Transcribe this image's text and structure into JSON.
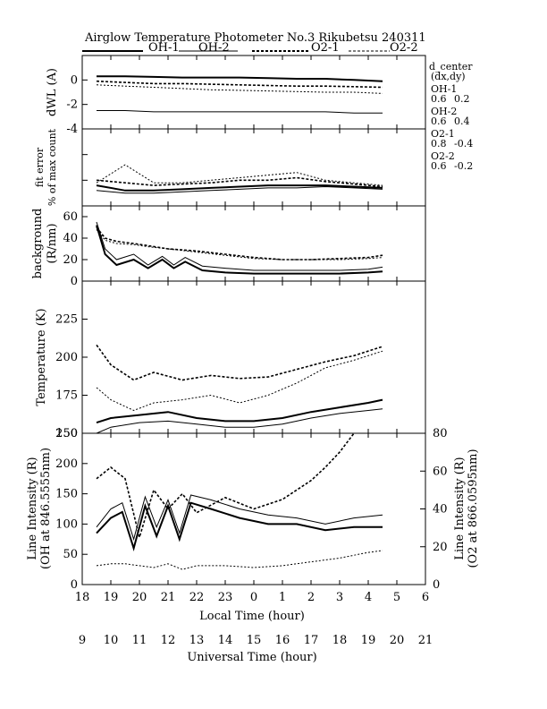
{
  "header": {
    "title": "Airglow Temperature Photometer No.3  Rikubetsu    240311"
  },
  "legend": [
    {
      "label": "OH-1",
      "style": "solid-thick"
    },
    {
      "label": "OH-2",
      "style": "solid-thin"
    },
    {
      "label": "O2-1",
      "style": "dashed-thick"
    },
    {
      "label": "O2-2",
      "style": "dashed-thin"
    }
  ],
  "side_info": {
    "heading1": "d_center",
    "heading2": "(dx,dy)",
    "entries": [
      {
        "name": "OH-1",
        "dx": "0.6",
        "dy": "0.2"
      },
      {
        "name": "OH-2",
        "dx": "0.6",
        "dy": "0.4"
      },
      {
        "name": "O2-1",
        "dx": "0.8",
        "dy": "-0.4"
      },
      {
        "name": "O2-2",
        "dx": "0.6",
        "dy": "-0.2"
      }
    ]
  },
  "axes": {
    "local_time_label": "Local Time (hour)",
    "universal_time_label": "Universal Time (hour)",
    "local_ticks": [
      "18",
      "19",
      "20",
      "21",
      "22",
      "23",
      "0",
      "1",
      "2",
      "3",
      "4",
      "5",
      "6"
    ],
    "ut_ticks": [
      "9",
      "10",
      "11",
      "12",
      "13",
      "14",
      "15",
      "16",
      "17",
      "18",
      "19",
      "20",
      "21"
    ]
  },
  "panels": {
    "dwl": {
      "ylabel": "dWL (A)",
      "ticks": [
        "0",
        "-2",
        "-4"
      ]
    },
    "fit": {
      "ylabel1": "fit error",
      "ylabel2": "% of max count"
    },
    "bg": {
      "ylabel1": "background",
      "ylabel2": "(R/nm)",
      "ticks": [
        "60",
        "40",
        "20",
        "0"
      ]
    },
    "temp": {
      "ylabel": "Temperature (K)",
      "ticks": [
        "225",
        "200",
        "175",
        "150"
      ]
    },
    "int": {
      "ylabel1": "Line Intensity (R)",
      "ylabel2": "(OH at 846.5555nm)",
      "rlabel1": "Line Intensity (R)",
      "rlabel2": "(O2 at 866.0595nm)",
      "left_ticks": [
        "250",
        "200",
        "150",
        "100",
        "50",
        "0"
      ],
      "right_ticks": [
        "80",
        "60",
        "40",
        "20",
        "0"
      ]
    }
  },
  "chart_data": {
    "type": "line",
    "title": "Airglow Temperature Photometer No.3  Rikubetsu    240311",
    "x_unit": "Local Time (hour)",
    "xlim": [
      18,
      30
    ],
    "panels": [
      {
        "name": "dWL",
        "ylabel": "dWL (A)",
        "ylim": [
          -4,
          2
        ],
        "series": [
          {
            "name": "OH-1",
            "x": [
              18.5,
              19.5,
              20.5,
              21.5,
              22.5,
              23.5,
              24.5,
              25.5,
              26.5,
              27.5,
              28.5
            ],
            "y": [
              0.3,
              0.3,
              0.25,
              0.2,
              0.2,
              0.2,
              0.15,
              0.1,
              0.1,
              0.0,
              -0.1
            ]
          },
          {
            "name": "OH-2",
            "x": [
              18.5,
              19.5,
              20.5,
              21.5,
              22.5,
              23.5,
              24.5,
              25.5,
              26.5,
              27.5,
              28.5
            ],
            "y": [
              -2.5,
              -2.5,
              -2.6,
              -2.6,
              -2.6,
              -2.6,
              -2.6,
              -2.6,
              -2.6,
              -2.7,
              -2.7
            ]
          },
          {
            "name": "O2-1",
            "x": [
              18.5,
              19.5,
              20.5,
              21.5,
              22.5,
              23.5,
              24.5,
              25.5,
              26.5,
              27.5,
              28.5
            ],
            "y": [
              -0.1,
              -0.2,
              -0.3,
              -0.3,
              -0.35,
              -0.4,
              -0.45,
              -0.5,
              -0.5,
              -0.55,
              -0.6
            ]
          },
          {
            "name": "O2-2",
            "x": [
              18.5,
              19.5,
              20.5,
              21.5,
              22.5,
              23.5,
              24.5,
              25.5,
              26.5,
              27.5,
              28.5
            ],
            "y": [
              -0.4,
              -0.5,
              -0.6,
              -0.7,
              -0.8,
              -0.85,
              -0.9,
              -0.95,
              -1.0,
              -1.0,
              -1.1
            ]
          }
        ]
      },
      {
        "name": "fit error",
        "ylabel": "fit error % of max count",
        "ylim": [
          0,
          3
        ],
        "series": [
          {
            "name": "OH-1",
            "x": [
              18.5,
              19.5,
              20.5,
              21.5,
              22.5,
              23.5,
              24.5,
              25.5,
              26.5,
              27.5,
              28.5
            ],
            "y": [
              0.8,
              0.6,
              0.6,
              0.65,
              0.7,
              0.75,
              0.8,
              0.8,
              0.8,
              0.75,
              0.7
            ]
          },
          {
            "name": "OH-2",
            "x": [
              18.5,
              19.5,
              20.5,
              21.5,
              22.5,
              23.5,
              24.5,
              25.5,
              26.5,
              27.5,
              28.5
            ],
            "y": [
              0.6,
              0.5,
              0.5,
              0.55,
              0.6,
              0.65,
              0.7,
              0.7,
              0.75,
              0.7,
              0.65
            ]
          },
          {
            "name": "O2-1",
            "x": [
              18.5,
              19.5,
              20.5,
              21.5,
              22.5,
              23.5,
              24.5,
              25.5,
              26.5,
              27.5,
              28.5
            ],
            "y": [
              1.0,
              0.9,
              0.8,
              0.85,
              0.9,
              1.0,
              1.0,
              1.1,
              0.95,
              0.85,
              0.75
            ]
          },
          {
            "name": "O2-2",
            "x": [
              18.5,
              19.5,
              20.5,
              21.5,
              22.5,
              23.5,
              24.5,
              25.5,
              26.5,
              27.5,
              28.5
            ],
            "y": [
              0.9,
              1.6,
              0.9,
              0.9,
              1.0,
              1.1,
              1.2,
              1.3,
              1.0,
              0.9,
              0.8
            ]
          }
        ]
      },
      {
        "name": "background",
        "ylabel": "background (R/nm)",
        "ylim": [
          0,
          70
        ],
        "series": [
          {
            "name": "OH-1",
            "x": [
              18.5,
              18.8,
              19.2,
              19.8,
              20.3,
              20.8,
              21.2,
              21.6,
              22.2,
              23,
              24,
              25,
              26,
              27,
              28,
              28.5
            ],
            "y": [
              52,
              25,
              15,
              20,
              12,
              20,
              12,
              18,
              10,
              8,
              7,
              7,
              7,
              7,
              8,
              9
            ]
          },
          {
            "name": "OH-2",
            "x": [
              18.5,
              18.8,
              19.2,
              19.8,
              20.3,
              20.8,
              21.2,
              21.6,
              22.2,
              23,
              24,
              25,
              26,
              27,
              28,
              28.5
            ],
            "y": [
              55,
              30,
              20,
              25,
              15,
              23,
              15,
              22,
              14,
              12,
              10,
              10,
              10,
              10,
              11,
              13
            ]
          },
          {
            "name": "O2-1",
            "x": [
              18.5,
              18.8,
              19.2,
              19.8,
              20.3,
              21,
              22,
              23,
              24,
              25,
              26,
              27,
              28,
              28.5
            ],
            "y": [
              50,
              40,
              37,
              35,
              33,
              30,
              28,
              25,
              22,
              20,
              20,
              21,
              22,
              24
            ]
          },
          {
            "name": "O2-2",
            "x": [
              18.5,
              18.8,
              19.2,
              19.8,
              20.3,
              21,
              22,
              23,
              24,
              25,
              26,
              27,
              28,
              28.5
            ],
            "y": [
              48,
              38,
              35,
              34,
              32,
              30,
              27,
              24,
              21,
              20,
              20,
              20,
              21,
              22
            ]
          }
        ]
      },
      {
        "name": "Temperature",
        "ylabel": "Temperature (K)",
        "ylim": [
          150,
          250
        ],
        "series": [
          {
            "name": "OH-1",
            "x": [
              18.5,
              19,
              20,
              21,
              22,
              23,
              24,
              25,
              26,
              27,
              28,
              28.5
            ],
            "y": [
              157,
              160,
              162,
              164,
              160,
              158,
              158,
              160,
              164,
              167,
              170,
              172
            ]
          },
          {
            "name": "OH-2",
            "x": [
              18.5,
              19,
              20,
              21,
              22,
              23,
              24,
              25,
              26,
              27,
              28,
              28.5
            ],
            "y": [
              150,
              154,
              157,
              158,
              156,
              154,
              154,
              156,
              160,
              163,
              165,
              166
            ]
          },
          {
            "name": "O2-1",
            "x": [
              18.5,
              19,
              19.8,
              20.5,
              21.5,
              22.5,
              23.5,
              24.5,
              25.5,
              26.5,
              27.5,
              28.5
            ],
            "y": [
              208,
              195,
              185,
              190,
              185,
              188,
              186,
              187,
              192,
              197,
              201,
              207
            ]
          },
          {
            "name": "O2-2",
            "x": [
              18.5,
              19,
              19.8,
              20.5,
              21.5,
              22.5,
              23.5,
              24.5,
              25.5,
              26.5,
              27.5,
              28.5
            ],
            "y": [
              180,
              172,
              165,
              170,
              172,
              175,
              170,
              175,
              183,
              193,
              198,
              204
            ]
          }
        ]
      },
      {
        "name": "Line Intensity",
        "ylabel": "Line Intensity (R) (OH at 846.5555nm)",
        "ylabel_right": "Line Intensity (R) (O2 at 866.0595nm)",
        "ylim": [
          0,
          250
        ],
        "ylim_right": [
          0,
          80
        ],
        "series": [
          {
            "name": "OH-1",
            "axis": "left",
            "x": [
              18.5,
              19,
              19.4,
              19.8,
              20.2,
              20.6,
              21,
              21.4,
              21.8,
              22.5,
              23.5,
              24.5,
              25.5,
              26.5,
              27.5,
              28.5
            ],
            "y": [
              85,
              110,
              120,
              60,
              130,
              80,
              130,
              75,
              135,
              125,
              110,
              100,
              100,
              90,
              95,
              95
            ]
          },
          {
            "name": "OH-2",
            "axis": "left",
            "x": [
              18.5,
              19,
              19.4,
              19.8,
              20.2,
              20.6,
              21,
              21.4,
              21.8,
              22.5,
              23.5,
              24.5,
              25.5,
              26.5,
              27.5,
              28.5
            ],
            "y": [
              95,
              125,
              135,
              75,
              145,
              95,
              140,
              85,
              148,
              140,
              125,
              115,
              110,
              100,
              110,
              115
            ]
          },
          {
            "name": "O2-1",
            "axis": "right",
            "x": [
              18.5,
              19,
              19.5,
              20,
              20.5,
              21,
              21.5,
              22,
              23,
              24,
              25,
              26,
              26.5,
              27,
              27.5
            ],
            "y": [
              56,
              62,
              56,
              25,
              50,
              40,
              48,
              38,
              46,
              40,
              45,
              55,
              62,
              70,
              80
            ]
          },
          {
            "name": "O2-2",
            "axis": "right",
            "x": [
              18.5,
              19,
              19.5,
              20,
              20.5,
              21,
              21.5,
              22,
              23,
              24,
              25,
              26,
              27,
              28,
              28.5
            ],
            "y": [
              10,
              11,
              11,
              10,
              9,
              11,
              8,
              10,
              10,
              9,
              10,
              12,
              14,
              17,
              18
            ]
          }
        ]
      }
    ]
  }
}
